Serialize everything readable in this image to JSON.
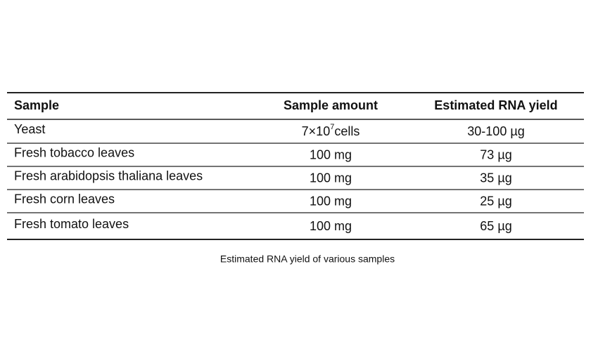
{
  "table": {
    "headers": [
      "Sample",
      "Sample amount",
      "Estimated RNA yield"
    ],
    "rows": [
      [
        "Yeast",
        {
          "base": "7×10",
          "sup": "7",
          "unit": "cells"
        },
        "30-100 µg"
      ],
      [
        "Fresh tobacco leaves",
        "100 mg",
        "73 µg"
      ],
      [
        "Fresh arabidopsis thaliana leaves",
        "100 mg",
        "35 µg"
      ],
      [
        "Fresh corn leaves",
        "100 mg",
        "25 µg"
      ],
      [
        "Fresh tomato leaves",
        "100 mg",
        "65 µg"
      ]
    ],
    "caption": "Estimated RNA yield of various samples"
  }
}
